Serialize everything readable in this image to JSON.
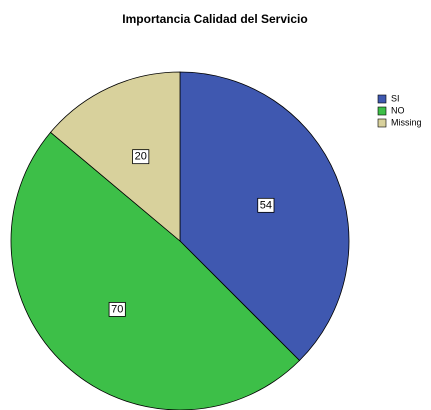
{
  "chart_data": {
    "type": "pie",
    "title": "Importancia Calidad del Servicio",
    "categories": [
      "SI",
      "NO",
      "Missing"
    ],
    "values": [
      54,
      70,
      20
    ],
    "colors": [
      "#3f58b0",
      "#3dbf48",
      "#d8d19c"
    ],
    "legend": "upper right"
  }
}
